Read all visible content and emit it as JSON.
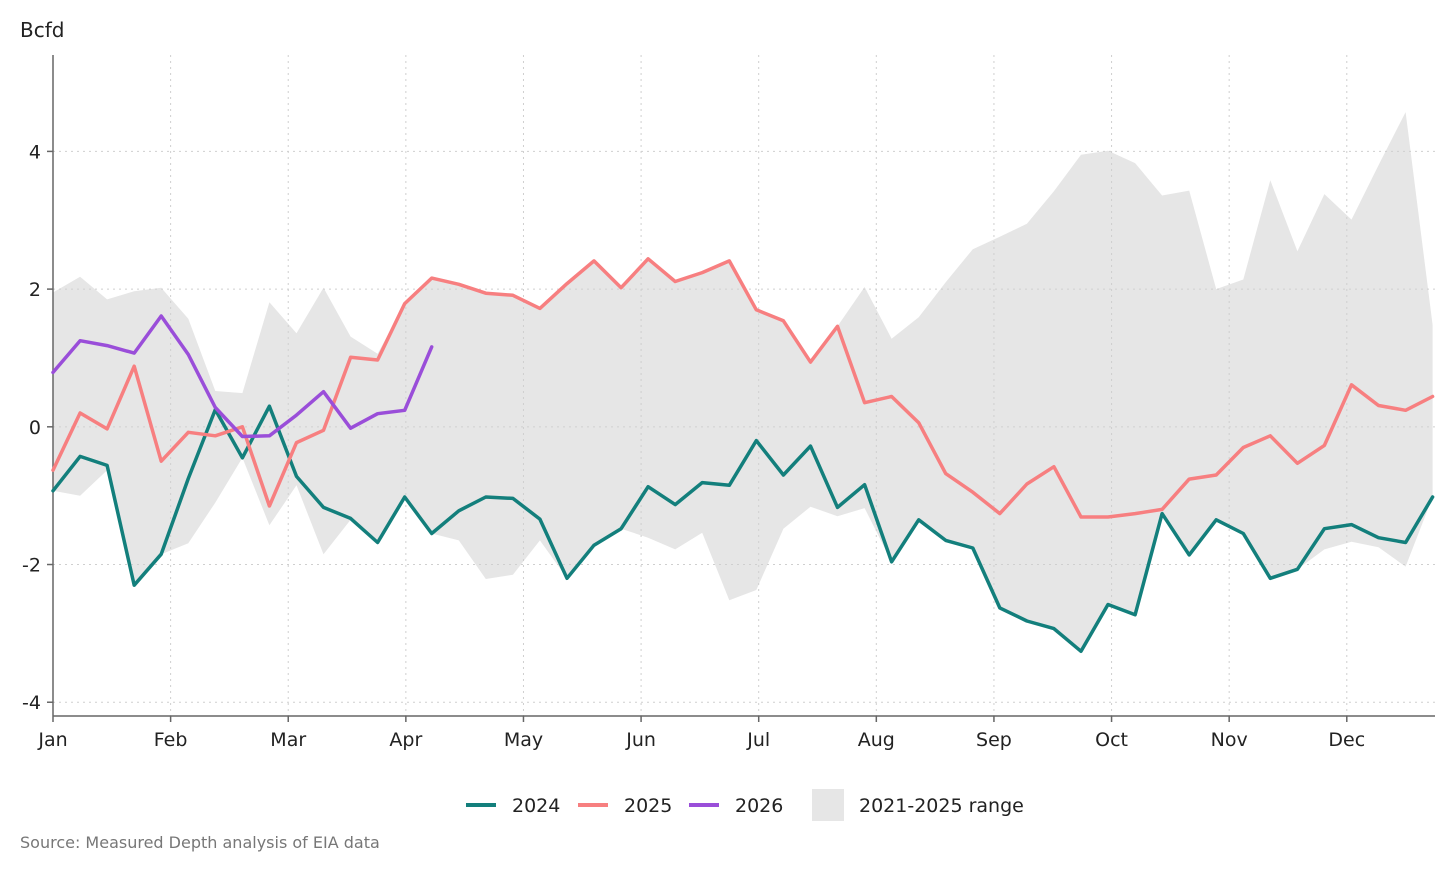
{
  "chart_data": {
    "type": "line",
    "ylabel": "Bcfd",
    "source": "Source: Measured Depth analysis of EIA data",
    "x_tick_labels": [
      "Jan",
      "Feb",
      "Mar",
      "Apr",
      "May",
      "Jun",
      "Jul",
      "Aug",
      "Sep",
      "Oct",
      "Nov",
      "Dec"
    ],
    "y_ticks": [
      4,
      2,
      0,
      -2,
      -4
    ],
    "y_tick_labels": [
      "4",
      "2",
      "0",
      "-2",
      "-4"
    ],
    "ylim": [
      -4.2,
      5.4
    ],
    "xlim": [
      0,
      11.75
    ],
    "grid": true,
    "legend_position": "bottom",
    "series": [
      {
        "name": "2024",
        "color": "#137f7c",
        "x": [
          0,
          0.23,
          0.46,
          0.69,
          0.92,
          1.15,
          1.38,
          1.61,
          1.84,
          2.07,
          2.3,
          2.53,
          2.76,
          2.99,
          3.22,
          3.45,
          3.68,
          3.91,
          4.14,
          4.37,
          4.6,
          4.83,
          5.06,
          5.29,
          5.52,
          5.75,
          5.98,
          6.21,
          6.44,
          6.67,
          6.9,
          7.13,
          7.36,
          7.59,
          7.82,
          8.05,
          8.28,
          8.51,
          8.74,
          8.97,
          9.2,
          9.43,
          9.66,
          9.89,
          10.12,
          10.35,
          10.58,
          10.81,
          11.04,
          11.27,
          11.5,
          11.73
        ],
        "values": [
          -0.93,
          -0.43,
          -0.56,
          -2.3,
          -1.85,
          -0.75,
          0.25,
          -0.45,
          0.3,
          -0.72,
          -1.17,
          -1.33,
          -1.68,
          -1.02,
          -1.55,
          -1.22,
          -1.02,
          -1.04,
          -1.34,
          -2.2,
          -1.72,
          -1.48,
          -0.87,
          -1.13,
          -0.81,
          -0.85,
          -0.2,
          -0.7,
          -0.28,
          -1.17,
          -0.84,
          -1.96,
          -1.35,
          -1.65,
          -1.76,
          -2.63,
          -2.82,
          -2.93,
          -3.26,
          -2.58,
          -2.73,
          -1.26,
          -1.86,
          -1.35,
          -1.55,
          -2.2,
          -2.07,
          -1.48,
          -1.42,
          -1.61,
          -1.68,
          -1.02
        ]
      },
      {
        "name": "2025",
        "color": "#f77f80",
        "x": [
          0,
          0.23,
          0.46,
          0.69,
          0.92,
          1.15,
          1.38,
          1.61,
          1.84,
          2.07,
          2.3,
          2.53,
          2.76,
          2.99,
          3.22,
          3.45,
          3.68,
          3.91,
          4.14,
          4.37,
          4.6,
          4.83,
          5.06,
          5.29,
          5.52,
          5.75,
          5.98,
          6.21,
          6.44,
          6.67,
          6.9,
          7.13,
          7.36,
          7.59,
          7.82,
          8.05,
          8.28,
          8.51,
          8.74,
          8.97,
          9.2,
          9.43,
          9.66,
          9.89,
          10.12,
          10.35,
          10.58,
          10.81,
          11.04,
          11.27,
          11.5,
          11.73
        ],
        "values": [
          -0.63,
          0.2,
          -0.03,
          0.88,
          -0.5,
          -0.08,
          -0.13,
          0,
          -1.15,
          -0.23,
          -0.05,
          1.01,
          0.97,
          1.79,
          2.16,
          2.07,
          1.94,
          1.91,
          1.72,
          2.08,
          2.41,
          2.02,
          2.44,
          2.11,
          2.24,
          2.41,
          1.7,
          1.54,
          0.94,
          1.46,
          0.35,
          0.44,
          0.06,
          -0.68,
          -0.95,
          -1.26,
          -0.83,
          -0.58,
          -1.31,
          -1.31,
          -1.26,
          -1.2,
          -0.76,
          -0.7,
          -0.3,
          -0.13,
          -0.53,
          -0.27,
          0.61,
          0.31,
          0.24,
          0.44
        ]
      },
      {
        "name": "2026",
        "color": "#9a4ed9",
        "x": [
          0,
          0.23,
          0.46,
          0.69,
          0.92,
          1.15,
          1.38,
          1.61,
          1.84,
          2.07,
          2.3,
          2.53,
          2.76,
          2.99,
          3.22
        ],
        "values": [
          0.79,
          1.25,
          1.18,
          1.07,
          1.61,
          1.05,
          0.28,
          -0.14,
          -0.13,
          0.17,
          0.51,
          -0.02,
          0.19,
          0.24,
          1.16
        ]
      }
    ],
    "range_band": {
      "name": "2021-2025 range",
      "color": "#e6e6e6",
      "x": [
        0,
        0.23,
        0.46,
        0.69,
        0.92,
        1.15,
        1.38,
        1.61,
        1.84,
        2.07,
        2.3,
        2.53,
        2.76,
        2.99,
        3.22,
        3.45,
        3.68,
        3.91,
        4.14,
        4.37,
        4.6,
        4.83,
        5.06,
        5.29,
        5.52,
        5.75,
        5.98,
        6.21,
        6.44,
        6.67,
        6.9,
        7.13,
        7.36,
        7.59,
        7.82,
        8.05,
        8.28,
        8.51,
        8.74,
        8.97,
        9.2,
        9.43,
        9.66,
        9.89,
        10.12,
        10.35,
        10.58,
        10.81,
        11.04,
        11.27,
        11.5,
        11.73
      ],
      "upper": [
        1.95,
        2.18,
        1.85,
        1.97,
        2.02,
        1.57,
        0.52,
        0.49,
        1.81,
        1.36,
        2.02,
        1.31,
        1.06,
        1.79,
        2.16,
        2.07,
        1.94,
        1.91,
        1.72,
        2.08,
        2.41,
        2.02,
        2.44,
        2.11,
        2.24,
        2.41,
        1.7,
        1.54,
        0.94,
        1.46,
        2.03,
        1.28,
        1.59,
        2.1,
        2.58,
        2.76,
        2.95,
        3.42,
        3.95,
        4.01,
        3.83,
        3.36,
        3.43,
        2.0,
        2.14,
        3.58,
        2.55,
        3.38,
        3.01,
        3.8,
        4.57,
        1.48
      ],
      "lower": [
        -0.93,
        -1.0,
        -0.63,
        -2.3,
        -1.85,
        -1.69,
        -1.1,
        -0.45,
        -1.43,
        -0.85,
        -1.85,
        -1.35,
        -1.7,
        -1.05,
        -1.55,
        -1.65,
        -2.21,
        -2.15,
        -1.65,
        -2.2,
        -1.72,
        -1.48,
        -1.61,
        -1.78,
        -1.54,
        -2.52,
        -2.37,
        -1.48,
        -1.16,
        -1.3,
        -1.18,
        -1.96,
        -1.35,
        -1.65,
        -1.76,
        -2.63,
        -2.82,
        -2.93,
        -3.26,
        -2.58,
        -2.73,
        -1.26,
        -1.86,
        -1.35,
        -1.55,
        -2.2,
        -2.07,
        -1.78,
        -1.67,
        -1.75,
        -2.03,
        -1.02
      ]
    }
  }
}
